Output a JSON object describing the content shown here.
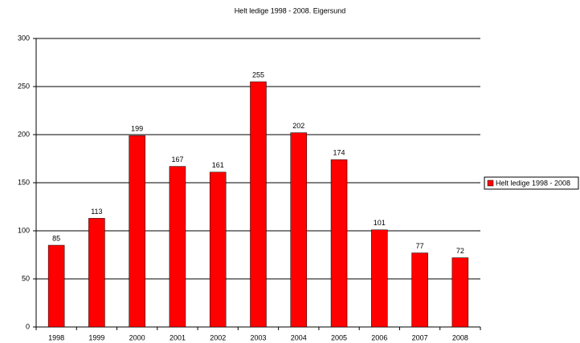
{
  "chart_data": {
    "type": "bar",
    "title": "Helt ledige 1998 - 2008. Eigersund",
    "categories": [
      "1998",
      "1999",
      "2000",
      "2001",
      "2002",
      "2003",
      "2004",
      "2005",
      "2006",
      "2007",
      "2008"
    ],
    "series": [
      {
        "name": "Helt ledige 1998 - 2008",
        "color": "#ff0000",
        "values": [
          85,
          113,
          199,
          167,
          161,
          255,
          202,
          174,
          101,
          77,
          72
        ]
      }
    ],
    "ylim": [
      0,
      300
    ],
    "yticks": [
      0,
      50,
      100,
      150,
      200,
      250,
      300
    ],
    "grid": true,
    "legend": "right",
    "data_labels": true
  }
}
